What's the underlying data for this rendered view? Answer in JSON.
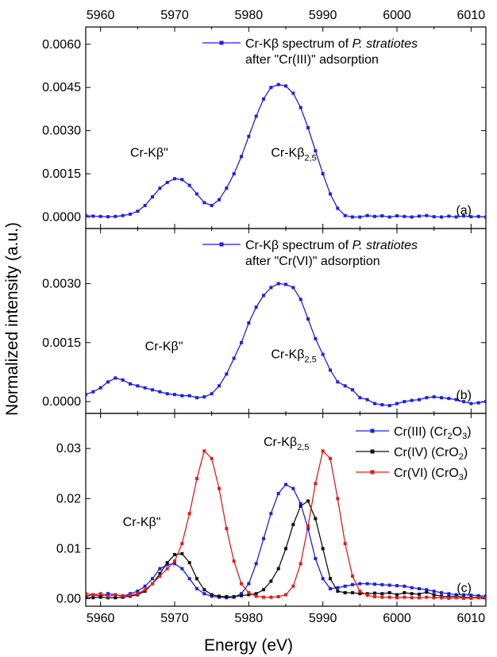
{
  "chart_data": {
    "type": "line",
    "xlabel": "Energy (eV)",
    "ylabel": "Normalized intensity (a.u.)",
    "xlim": [
      5958,
      6012
    ],
    "x_ticks": [
      5960,
      5970,
      5980,
      5990,
      6000,
      6010
    ],
    "grid": false,
    "panels": [
      {
        "tag": "(a)",
        "ylim": [
          -0.0004,
          0.0066
        ],
        "y_ticks": [
          "0.0000",
          "0.0015",
          "0.0030",
          "0.0045",
          "0.0060"
        ],
        "y_tick_values": [
          0,
          0.0015,
          0.003,
          0.0045,
          0.006
        ],
        "legend_position": "top-right",
        "series": [
          {
            "name": "Cr-Kβ spectrum of P. stratiotes after \"Cr(III)\" adsorption",
            "name_plain": "Cr-Kβ spectrum of ",
            "name_italic": "P. stratiotes",
            "name_line2": "after \"Cr(III)\" adsorption",
            "color": "#1f1fe6",
            "x": [
              5958,
              5959,
              5960,
              5961,
              5962,
              5963,
              5964,
              5965,
              5966,
              5967,
              5968,
              5969,
              5970,
              5971,
              5972,
              5973,
              5974,
              5975,
              5976,
              5977,
              5978,
              5979,
              5980,
              5981,
              5982,
              5983,
              5984,
              5985,
              5986,
              5987,
              5988,
              5989,
              5990,
              5991,
              5992,
              5993,
              5994,
              5995,
              5996,
              5997,
              5998,
              5999,
              6000,
              6001,
              6002,
              6003,
              6004,
              6005,
              6006,
              6007,
              6008,
              6009,
              6010,
              6011,
              6012
            ],
            "y": [
              5e-05,
              3e-05,
              2e-05,
              1e-05,
              2e-05,
              5e-05,
              0.0001,
              0.0002,
              0.0004,
              0.0007,
              0.001,
              0.0012,
              0.00133,
              0.0013,
              0.0011,
              0.0008,
              0.0005,
              0.0004,
              0.0006,
              0.001,
              0.0015,
              0.0021,
              0.0028,
              0.0035,
              0.0041,
              0.0045,
              0.0046,
              0.00455,
              0.0043,
              0.0038,
              0.0031,
              0.0023,
              0.0015,
              0.0008,
              0.0003,
              5e-05,
              0.0,
              0.0,
              5e-05,
              2e-05,
              4e-05,
              0.0,
              4e-05,
              2e-05,
              0.0,
              3e-05,
              5e-05,
              1e-05,
              0.0,
              3e-05,
              0.0,
              4e-05,
              1e-05,
              2e-05,
              0.0
            ]
          }
        ],
        "annotations": [
          {
            "text": "Cr-Kβ\"",
            "sub": "",
            "x": 5964,
            "y": 0.0021
          },
          {
            "text": "Cr-Kβ",
            "sub": "2,5",
            "x": 5983,
            "y": 0.0021
          }
        ]
      },
      {
        "tag": "(b)",
        "ylim": [
          -0.0003,
          0.0044
        ],
        "y_ticks": [
          "0.0000",
          "0.0015",
          "0.0030"
        ],
        "y_tick_values": [
          0,
          0.0015,
          0.003
        ],
        "legend_position": "top-right",
        "series": [
          {
            "name": "Cr-Kβ spectrum of P. stratiotes after \"Cr(VI)\" adsorption",
            "name_plain": "Cr-Kβ spectrum of ",
            "name_italic": "P. stratiotes",
            "name_line2": "after \"Cr(VI)\" adsorption",
            "color": "#1f1fe6",
            "x": [
              5958,
              5959,
              5960,
              5961,
              5962,
              5963,
              5964,
              5965,
              5966,
              5967,
              5968,
              5969,
              5970,
              5971,
              5972,
              5973,
              5974,
              5975,
              5976,
              5977,
              5978,
              5979,
              5980,
              5981,
              5982,
              5983,
              5984,
              5985,
              5986,
              5987,
              5988,
              5989,
              5990,
              5991,
              5992,
              5993,
              5994,
              5995,
              5996,
              5997,
              5998,
              5999,
              6000,
              6001,
              6002,
              6003,
              6004,
              6005,
              6006,
              6007,
              6008,
              6009,
              6010,
              6011,
              6012
            ],
            "y": [
              0.00018,
              0.00025,
              0.00035,
              0.0005,
              0.0006,
              0.00055,
              0.00045,
              0.0004,
              0.00035,
              0.0003,
              0.00025,
              0.0002,
              0.00018,
              0.00015,
              0.00015,
              0.0001,
              0.00012,
              0.0002,
              0.0004,
              0.0007,
              0.0011,
              0.0015,
              0.002,
              0.0024,
              0.0027,
              0.0029,
              0.003,
              0.00298,
              0.0029,
              0.0026,
              0.0021,
              0.0016,
              0.0012,
              0.0008,
              0.0005,
              0.0004,
              0.0003,
              0.0001,
              5e-05,
              -5e-05,
              -8e-05,
              -0.0001,
              -5e-05,
              0.0,
              3e-05,
              5e-05,
              0.0001,
              0.00012,
              0.0001,
              8e-05,
              5e-05,
              0.0,
              -5e-05,
              -3e-05,
              0.0
            ]
          }
        ],
        "annotations": [
          {
            "text": "Cr-Kβ\"",
            "sub": "",
            "x": 5966,
            "y": 0.0013
          },
          {
            "text": "Cr-Kβ",
            "sub": "2,5",
            "x": 5983,
            "y": 0.0011
          }
        ]
      },
      {
        "tag": "(c)",
        "ylim": [
          -0.0015,
          0.037
        ],
        "y_ticks": [
          "0.00",
          "0.01",
          "0.02",
          "0.03"
        ],
        "y_tick_values": [
          0,
          0.01,
          0.02,
          0.03
        ],
        "legend_position": "top-right",
        "series": [
          {
            "name": "Cr(III) (Cr2O3)",
            "label_parts": [
              [
                "Cr(III) (Cr",
                ""
              ],
              [
                "2",
                "sub"
              ],
              [
                "O",
                ""
              ],
              [
                "3",
                "sub"
              ],
              [
                ")",
                ""
              ]
            ],
            "color": "#1f1fe6",
            "x": [
              5958,
              5959,
              5960,
              5961,
              5962,
              5963,
              5964,
              5965,
              5966,
              5967,
              5968,
              5969,
              5970,
              5971,
              5972,
              5973,
              5974,
              5975,
              5976,
              5977,
              5978,
              5979,
              5980,
              5981,
              5982,
              5983,
              5984,
              5985,
              5986,
              5987,
              5988,
              5989,
              5990,
              5991,
              5992,
              5993,
              5994,
              5995,
              5996,
              5997,
              5998,
              5999,
              6000,
              6001,
              6002,
              6003,
              6004,
              6005,
              6006,
              6007,
              6008,
              6009,
              6010,
              6011,
              6012
            ],
            "y": [
              0.0005,
              0.0008,
              0.0005,
              0.001,
              0.0008,
              0.0005,
              0.001,
              0.0015,
              0.0025,
              0.004,
              0.006,
              0.0068,
              0.007,
              0.006,
              0.004,
              0.002,
              0.001,
              0.0005,
              0.0003,
              0.0002,
              0.0003,
              0.001,
              0.003,
              0.007,
              0.012,
              0.017,
              0.021,
              0.0228,
              0.022,
              0.019,
              0.014,
              0.008,
              0.004,
              0.002,
              0.0022,
              0.0025,
              0.0028,
              0.003,
              0.003,
              0.0029,
              0.0028,
              0.0027,
              0.0026,
              0.0025,
              0.0022,
              0.002,
              0.0018,
              0.0015,
              0.0012,
              0.001,
              0.0008,
              0.0008,
              0.0007,
              0.0006,
              0.0005
            ]
          },
          {
            "name": "Cr(IV) (CrO2)",
            "label_parts": [
              [
                "Cr(IV) (CrO",
                ""
              ],
              [
                "2",
                "sub"
              ],
              [
                ")",
                ""
              ]
            ],
            "color": "#111111",
            "x": [
              5958,
              5959,
              5960,
              5961,
              5962,
              5963,
              5964,
              5965,
              5966,
              5967,
              5968,
              5969,
              5970,
              5971,
              5972,
              5973,
              5974,
              5975,
              5976,
              5977,
              5978,
              5979,
              5980,
              5981,
              5982,
              5983,
              5984,
              5985,
              5986,
              5987,
              5988,
              5989,
              5990,
              5991,
              5992,
              5993,
              5994,
              5995,
              5996,
              5997,
              5998,
              5999,
              6000,
              6001,
              6002,
              6003,
              6004,
              6005,
              6006,
              6007,
              6008,
              6009,
              6010,
              6011,
              6012
            ],
            "y": [
              0.0003,
              0.0002,
              0.0003,
              0.0002,
              0.0002,
              0.0003,
              0.0005,
              0.0008,
              0.0015,
              0.003,
              0.005,
              0.0072,
              0.0088,
              0.009,
              0.0072,
              0.004,
              0.0018,
              0.0008,
              0.0005,
              0.0004,
              0.0004,
              0.0006,
              0.0008,
              0.001,
              0.0018,
              0.0035,
              0.006,
              0.01,
              0.0148,
              0.0185,
              0.0195,
              0.016,
              0.01,
              0.004,
              0.0015,
              0.0012,
              0.0012,
              0.001,
              0.001,
              0.0011,
              0.001,
              0.0012,
              0.0008,
              0.0012,
              0.001,
              0.0009,
              0.0013,
              0.0008,
              0.0005,
              0.0004,
              0.0005,
              0.0003,
              0.0002,
              0.0003,
              0.0002
            ]
          },
          {
            "name": "Cr(VI) (CrO3)",
            "label_parts": [
              [
                "Cr(VI) (CrO",
                ""
              ],
              [
                "3",
                "sub"
              ],
              [
                ")",
                ""
              ]
            ],
            "color": "#e61a1a",
            "x": [
              5958,
              5959,
              5960,
              5961,
              5962,
              5963,
              5964,
              5965,
              5966,
              5967,
              5968,
              5969,
              5970,
              5971,
              5972,
              5973,
              5974,
              5975,
              5976,
              5977,
              5978,
              5979,
              5980,
              5981,
              5982,
              5983,
              5984,
              5985,
              5986,
              5987,
              5988,
              5989,
              5990,
              5991,
              5992,
              5993,
              5994,
              5995,
              5996,
              5997,
              5998,
              5999,
              6000,
              6001,
              6002,
              6003,
              6004,
              6005,
              6006,
              6007,
              6008,
              6009,
              6010,
              6011,
              6012
            ],
            "y": [
              0.001,
              0.0008,
              0.001,
              0.0005,
              0.0008,
              0.0006,
              0.0007,
              0.001,
              0.0018,
              0.003,
              0.0045,
              0.006,
              0.0075,
              0.011,
              0.017,
              0.024,
              0.0295,
              0.028,
              0.022,
              0.014,
              0.0075,
              0.003,
              0.0012,
              0.0005,
              0.0003,
              0.0003,
              0.0004,
              0.0008,
              0.0025,
              0.007,
              0.0145,
              0.023,
              0.0295,
              0.028,
              0.02,
              0.011,
              0.0045,
              0.0015,
              0.0007,
              0.0004,
              0.0003,
              0.0003,
              0.0002,
              0.0003,
              0.0002,
              0.0002,
              0.0003,
              0.0002,
              0.0002,
              0.0001,
              0.0002,
              0.0001,
              0.0001,
              0.0002,
              0.0001
            ]
          }
        ],
        "annotations": [
          {
            "text": "Cr-Kβ\"",
            "sub": "",
            "x": 5963,
            "y": 0.0145
          },
          {
            "text": "Cr-Kβ",
            "sub": "2,5",
            "x": 5982,
            "y": 0.0305
          }
        ]
      }
    ]
  }
}
